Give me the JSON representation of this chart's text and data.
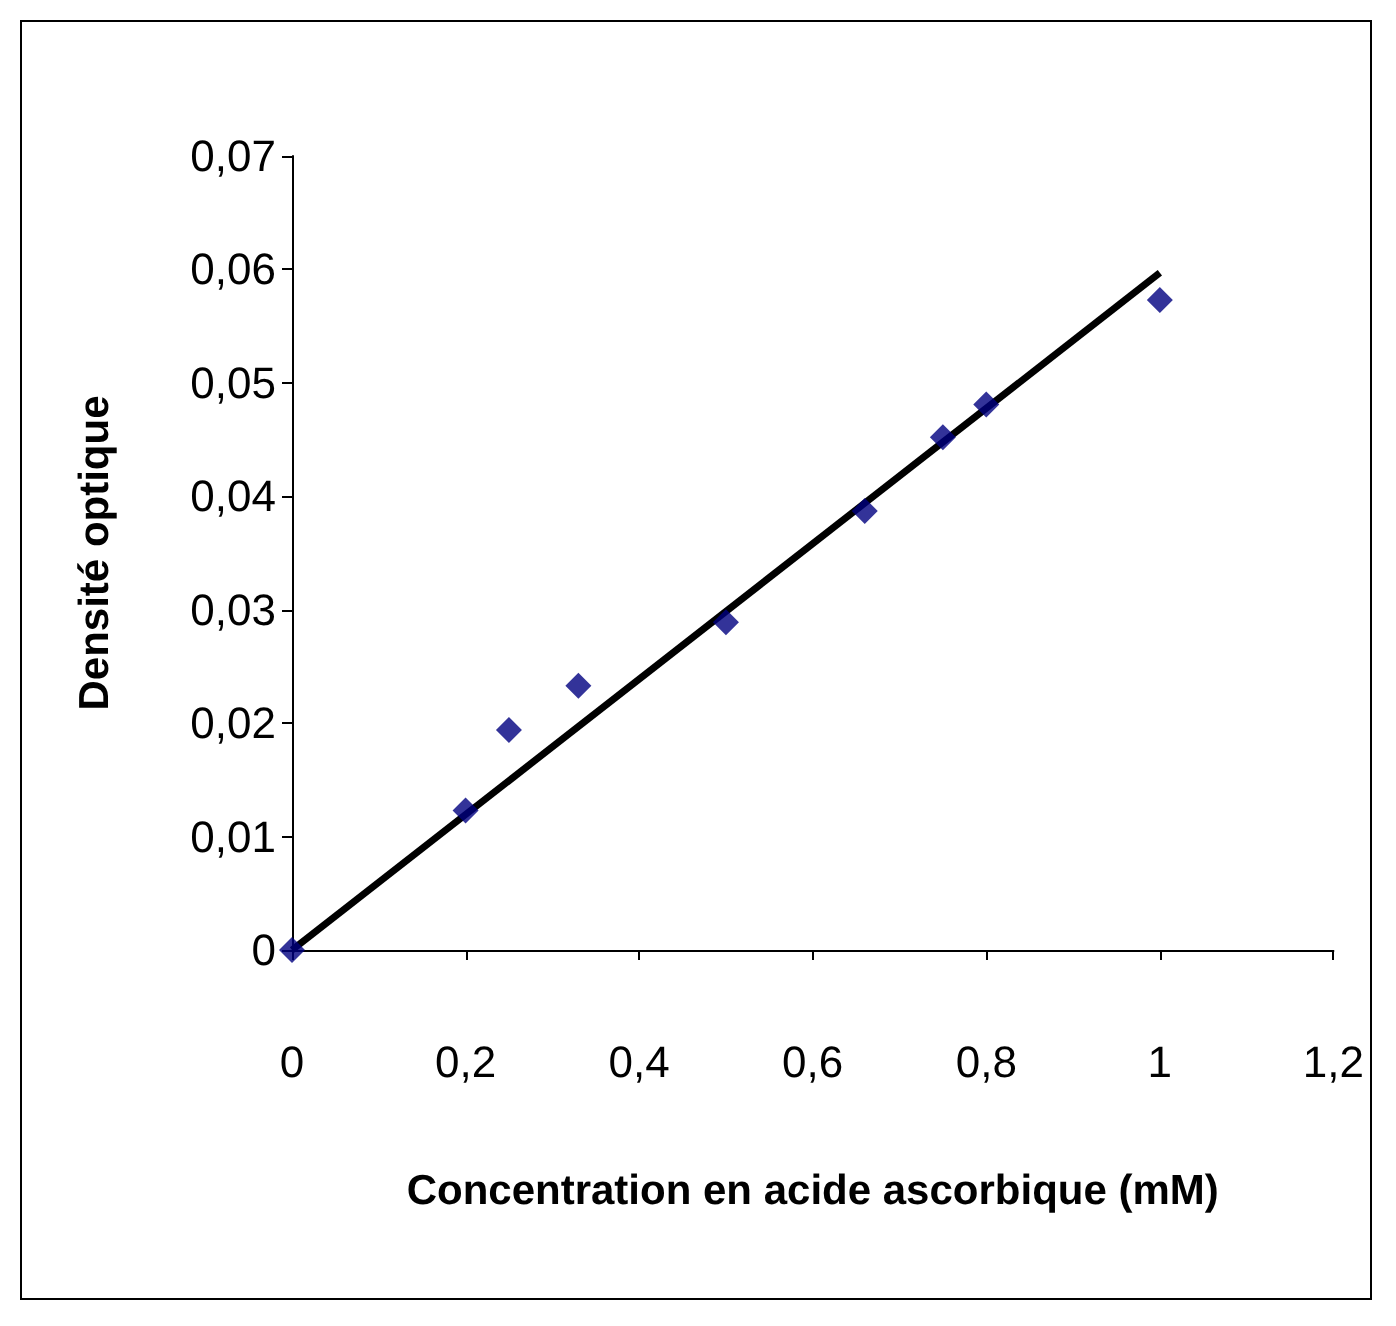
{
  "chart_data": {
    "type": "scatter",
    "xlabel": "Concentration en acide ascorbique (mM)",
    "ylabel": "Densité optique",
    "series": [
      {
        "color": "#000080",
        "marker": "diamond",
        "x": [
          0,
          0.2,
          0.25,
          0.33,
          0.5,
          0.66,
          0.75,
          0.8,
          1.0
        ],
        "values": [
          0,
          0.0123,
          0.0194,
          0.0233,
          0.0289,
          0.0387,
          0.0452,
          0.0481,
          0.0573
        ]
      },
      {
        "type": "line",
        "color": "#000000",
        "marker": "none",
        "x": [
          0,
          1.0
        ],
        "values": [
          0,
          0.0597
        ]
      }
    ],
    "xlim": [
      0,
      1.2
    ],
    "xticks": [
      {
        "value": 0,
        "label": "0"
      },
      {
        "value": 0.2,
        "label": "0,2"
      },
      {
        "value": 0.4,
        "label": "0,4"
      },
      {
        "value": 0.6,
        "label": "0,6"
      },
      {
        "value": 0.8,
        "label": "0,8"
      },
      {
        "value": 1,
        "label": "1"
      },
      {
        "value": 1.2,
        "label": "1,2"
      }
    ],
    "ylim": [
      0,
      0.07
    ],
    "yticks": [
      {
        "value": 0,
        "label": "0"
      },
      {
        "value": 0.01,
        "label": "0,01"
      },
      {
        "value": 0.02,
        "label": "0,02"
      },
      {
        "value": 0.03,
        "label": "0,03"
      },
      {
        "value": 0.04,
        "label": "0,04"
      },
      {
        "value": 0.05,
        "label": "0,05"
      },
      {
        "value": 0.06,
        "label": "0,06"
      },
      {
        "value": 0.07,
        "label": "0,07"
      }
    ],
    "grid": false
  }
}
